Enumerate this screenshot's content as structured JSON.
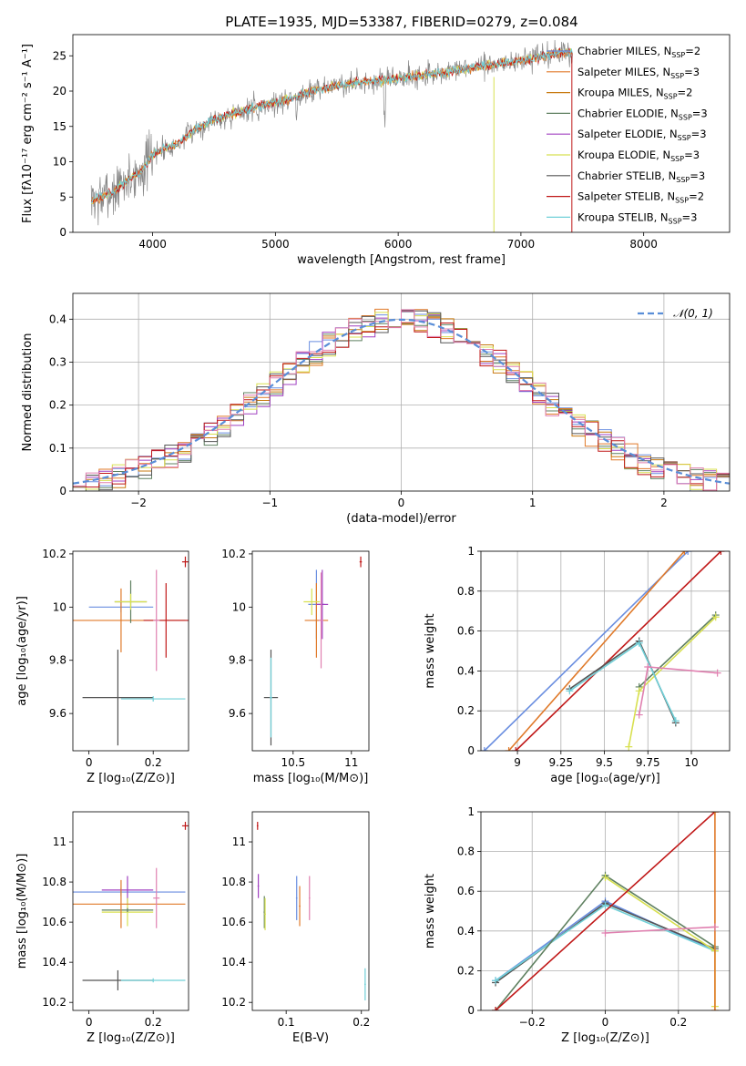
{
  "figure": {
    "title": "PLATE=1935, MJD=53387, FIBERID=0279, z=0.084"
  },
  "colors": {
    "Chabrier MILES": "#6a8ee0",
    "Salpeter MILES": "#e07a2a",
    "Kroupa MILES": "#c87a10",
    "Chabrier ELODIE": "#5f8060",
    "Salpeter ELODIE": "#a040c0",
    "Kroupa ELODIE": "#d8e050",
    "Chabrier STELIB": "#555555",
    "Salpeter STELIB": "#c01818",
    "Kroupa STELIB": "#70d0d8",
    "Pink": "#e080b0",
    "Gauss": "#5a8ed8"
  },
  "chart_data": [
    {
      "type": "line",
      "title": "PLATE=1935, MJD=53387, FIBERID=0279, z=0.084",
      "xlabel": "wavelength [Angstrom, rest frame]",
      "ylabel": "Flux [fλ10⁻¹⁷ erg cm⁻² s⁻¹ A⁻¹]",
      "xlim": [
        3350,
        8700
      ],
      "ylim": [
        0,
        28
      ],
      "xticks": [
        4000,
        5000,
        6000,
        7000,
        8000
      ],
      "yticks": [
        0,
        5,
        10,
        15,
        20,
        25
      ],
      "legend_loc": "top-right",
      "series": [
        {
          "name": "Chabrier MILES, N_SSP=2",
          "legend_main": "Chabrier MILES, N",
          "legend_sub": "SSP",
          "legend_tail": "=2",
          "color": "Chabrier MILES"
        },
        {
          "name": "Salpeter MILES, N_SSP=3",
          "legend_main": "Salpeter MILES, N",
          "legend_sub": "SSP",
          "legend_tail": "=3",
          "color": "Salpeter MILES"
        },
        {
          "name": "Kroupa MILES, N_SSP=2",
          "legend_main": "Kroupa MILES, N",
          "legend_sub": "SSP",
          "legend_tail": "=2",
          "color": "Kroupa MILES"
        },
        {
          "name": "Chabrier ELODIE, N_SSP=3",
          "legend_main": "Chabrier ELODIE, N",
          "legend_sub": "SSP",
          "legend_tail": "=3",
          "color": "Chabrier ELODIE"
        },
        {
          "name": "Salpeter ELODIE, N_SSP=3",
          "legend_main": "Salpeter ELODIE, N",
          "legend_sub": "SSP",
          "legend_tail": "=3",
          "color": "Salpeter ELODIE"
        },
        {
          "name": "Kroupa ELODIE, N_SSP=3",
          "legend_main": "Kroupa ELODIE, N",
          "legend_sub": "SSP",
          "legend_tail": "=3",
          "color": "Kroupa ELODIE"
        },
        {
          "name": "Chabrier STELIB, N_SSP=3",
          "legend_main": "Chabrier STELIB, N",
          "legend_sub": "SSP",
          "legend_tail": "=3",
          "color": "Chabrier STELIB"
        },
        {
          "name": "Salpeter STELIB, N_SSP=2",
          "legend_main": "Salpeter STELIB, N",
          "legend_sub": "SSP",
          "legend_tail": "=2",
          "color": "Salpeter STELIB"
        },
        {
          "name": "Kroupa STELIB, N_SSP=3",
          "legend_main": "Kroupa STELIB, N",
          "legend_sub": "SSP",
          "legend_tail": "=3",
          "color": "Kroupa STELIB"
        }
      ],
      "continuum": {
        "x": [
          3500,
          3600,
          3700,
          3800,
          3900,
          4000,
          4100,
          4200,
          4300,
          4400,
          4500,
          4600,
          4700,
          4800,
          4900,
          5000,
          5100,
          5200,
          5300,
          5400,
          5500,
          5600,
          5700,
          5800,
          5900,
          6000,
          6200,
          6400,
          6600,
          6800,
          7000,
          7200,
          7400
        ],
        "y": [
          4.5,
          5.0,
          6.0,
          7.5,
          8.5,
          11.0,
          12.0,
          12.5,
          14.0,
          15.0,
          16.0,
          16.5,
          17.0,
          17.5,
          18.0,
          18.3,
          18.8,
          19.5,
          20.0,
          20.4,
          20.8,
          21.0,
          21.3,
          21.5,
          21.6,
          21.8,
          22.3,
          22.6,
          23.3,
          23.8,
          24.3,
          25.0,
          25.6
        ]
      }
    },
    {
      "type": "step",
      "xlabel": "(data-model)/error",
      "ylabel": "Normed distribution",
      "xlim": [
        -2.5,
        2.5
      ],
      "ylim": [
        0,
        0.46
      ],
      "xticks": [
        -2,
        -1,
        0,
        1,
        2
      ],
      "yticks": [
        0.0,
        0.1,
        0.2,
        0.3,
        0.4
      ],
      "grid": true,
      "legend_loc": "top-right",
      "gauss_label": "𝒩(0, 1)",
      "bins": [
        -2.5,
        2.5,
        50
      ]
    },
    {
      "type": "errorbar",
      "xlabel": "Z [log₁₀(Z/Z⊙)]",
      "ylabel": "age  [log₁₀(age/yr)]",
      "xlim": [
        -0.05,
        0.31
      ],
      "ylim": [
        9.46,
        10.21
      ],
      "xticks": [
        0.0,
        0.2
      ],
      "yticks": [
        9.6,
        9.8,
        10.0,
        10.2
      ]
    },
    {
      "type": "errorbar",
      "xlabel": "mass [log₁₀(M/M⊙)]",
      "xlim": [
        10.15,
        11.15
      ],
      "ylim": [
        9.46,
        10.21
      ],
      "xticks": [
        10.5,
        11.0
      ],
      "yticks": [
        9.6,
        9.8,
        10.0,
        10.2
      ]
    },
    {
      "type": "line",
      "xlabel": "age  [log₁₀(age/yr)]",
      "ylabel": "mass weight",
      "xlim": [
        8.79,
        10.22
      ],
      "ylim": [
        0,
        1
      ],
      "xticks": [
        9.0,
        9.25,
        9.5,
        9.75,
        10.0
      ],
      "yticks": [
        0.0,
        0.2,
        0.4,
        0.6,
        0.8,
        1.0
      ],
      "grid": true,
      "series": [
        {
          "name": "Chabrier MILES",
          "x": [
            8.81,
            9.98
          ],
          "y": [
            0.0,
            1.0
          ],
          "color": "Chabrier MILES"
        },
        {
          "name": "Salpeter MILES",
          "x": [
            8.95,
            9.96
          ],
          "y": [
            0.0,
            1.0
          ],
          "color": "Salpeter MILES"
        },
        {
          "name": "Salpeter STELIB",
          "x": [
            8.99,
            10.17
          ],
          "y": [
            0.0,
            1.0
          ],
          "color": "Salpeter STELIB"
        },
        {
          "name": "Chabrier ELODIE",
          "x": [
            9.7,
            10.14
          ],
          "y": [
            0.32,
            0.68
          ],
          "color": "Chabrier ELODIE"
        },
        {
          "name": "Kroupa ELODIE",
          "x": [
            9.64,
            9.7,
            10.14
          ],
          "y": [
            0.02,
            0.3,
            0.67
          ],
          "color": "Kroupa ELODIE"
        },
        {
          "name": "Chabrier STELIB",
          "x": [
            9.3,
            9.7,
            9.91
          ],
          "y": [
            0.31,
            0.55,
            0.14
          ],
          "color": "Chabrier STELIB"
        },
        {
          "name": "Kroupa STELIB",
          "x": [
            9.3,
            9.7,
            9.91
          ],
          "y": [
            0.3,
            0.54,
            0.15
          ],
          "color": "Kroupa STELIB"
        },
        {
          "name": "Pink",
          "x": [
            9.7,
            9.75,
            10.15
          ],
          "y": [
            0.18,
            0.42,
            0.39
          ],
          "color": "Pink"
        }
      ]
    },
    {
      "type": "errorbar",
      "xlabel": "Z [log₁₀(Z/Z⊙)]",
      "ylabel": "mass [log₁₀(M/M⊙)]",
      "xlim": [
        -0.05,
        0.31
      ],
      "ylim": [
        10.16,
        11.15
      ],
      "xticks": [
        0.0,
        0.2
      ],
      "yticks": [
        10.2,
        10.4,
        10.6,
        10.8,
        11.0
      ]
    },
    {
      "type": "errorbar",
      "xlabel": "E(B-V)",
      "xlim": [
        0.055,
        0.21
      ],
      "ylim": [
        10.16,
        11.15
      ],
      "xticks": [
        0.1,
        0.2
      ],
      "yticks": [
        10.2,
        10.4,
        10.6,
        10.8,
        11.0
      ]
    },
    {
      "type": "line",
      "xlabel": "Z [log₁₀(Z/Z⊙)]",
      "ylabel": "mass weight",
      "xlim": [
        -0.34,
        0.34
      ],
      "ylim": [
        0,
        1
      ],
      "xticks": [
        -0.2,
        0.0,
        0.2
      ],
      "yticks": [
        0.0,
        0.2,
        0.4,
        0.6,
        0.8,
        1.0
      ],
      "grid": true,
      "series": [
        {
          "name": "Chabrier MILES",
          "x": [
            -0.3,
            0.0,
            0.3
          ],
          "y": [
            0.15,
            0.55,
            0.3
          ],
          "color": "Chabrier MILES"
        },
        {
          "name": "Chabrier STELIB",
          "x": [
            -0.3,
            0.0,
            0.3
          ],
          "y": [
            0.14,
            0.54,
            0.31
          ],
          "color": "Chabrier STELIB"
        },
        {
          "name": "Kroupa STELIB",
          "x": [
            -0.3,
            0.0,
            0.3
          ],
          "y": [
            0.15,
            0.53,
            0.3
          ],
          "color": "Kroupa STELIB"
        },
        {
          "name": "Chabrier ELODIE",
          "x": [
            -0.3,
            0.0,
            0.3
          ],
          "y": [
            0.0,
            0.68,
            0.32
          ],
          "color": "Chabrier ELODIE"
        },
        {
          "name": "Kroupa ELODIE",
          "x": [
            0.0,
            0.3,
            0.3
          ],
          "y": [
            0.67,
            0.3,
            0.02
          ],
          "color": "Kroupa ELODIE"
        },
        {
          "name": "Salpeter STELIB",
          "x": [
            -0.3,
            0.3
          ],
          "y": [
            0.0,
            1.0
          ],
          "color": "Salpeter STELIB"
        },
        {
          "name": "Salpeter MILES",
          "x": [
            0.3,
            0.3
          ],
          "y": [
            0.0,
            1.0
          ],
          "color": "Salpeter MILES"
        },
        {
          "name": "Pink",
          "x": [
            0.0,
            0.3
          ],
          "y": [
            0.39,
            0.42
          ],
          "color": "Pink"
        }
      ]
    }
  ]
}
